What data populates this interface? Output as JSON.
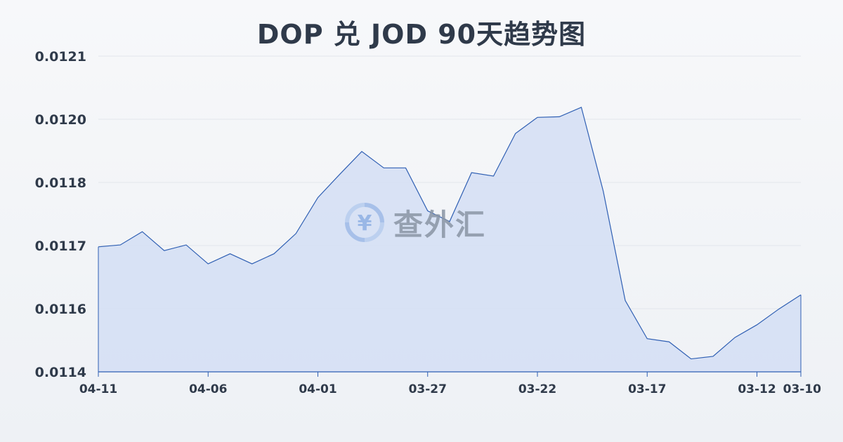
{
  "chart_data": {
    "type": "area",
    "title": "DOP 兑 JOD 90天趋势图",
    "xlabel": "",
    "ylabel": "",
    "y_ticks": [
      "0.0114",
      "0.0116",
      "0.0117",
      "0.0118",
      "0.0120",
      "0.0121"
    ],
    "y_tick_values": [
      0.0114,
      0.0116,
      0.0117,
      0.0118,
      0.012,
      0.0121
    ],
    "x_tick_labels": [
      "04-11",
      "04-06",
      "04-01",
      "03-27",
      "03-22",
      "03-17",
      "03-12",
      "03-10"
    ],
    "x_tick_indices": [
      0,
      5,
      10,
      15,
      20,
      25,
      30,
      32
    ],
    "ylim": [
      0.0114,
      0.0121
    ],
    "grid": true,
    "color": "#2f5fb3",
    "fill_color": "#d4def4",
    "series": [
      {
        "values": [
          0.011698,
          0.011701,
          0.011722,
          0.011692,
          0.011701,
          0.011671,
          0.011687,
          0.011671,
          0.011687,
          0.011719,
          0.011776,
          0.011826,
          0.011898,
          0.011846,
          0.011846,
          0.011755,
          0.011738,
          0.011831,
          0.01182,
          0.011955,
          0.012003,
          0.012004,
          0.012019,
          0.011786,
          0.011613,
          0.011505,
          0.011495,
          0.011441,
          0.011449,
          0.011509,
          0.011549,
          0.011599,
          0.011622
        ]
      }
    ]
  },
  "watermark": {
    "text": "查外汇",
    "icon": "yen-exchange-icon",
    "icon_glyph": "¥"
  }
}
